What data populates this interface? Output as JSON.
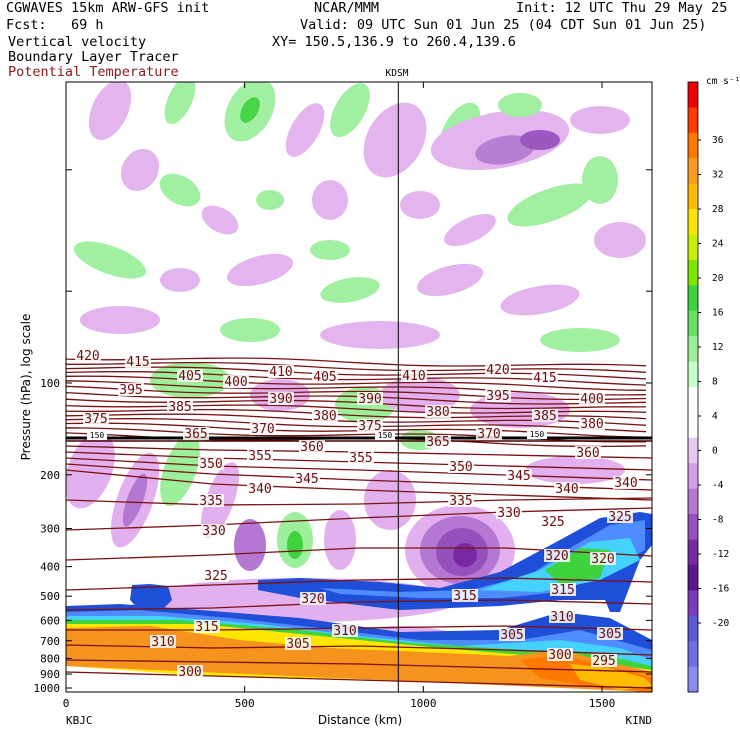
{
  "header": {
    "line1_left": "CGWAVES 15km ARW-GFS init",
    "line1_center": "NCAR/MMM",
    "line1_right": "Init: 12 UTC Thu 29 May 25",
    "fcst": "Fcst:   69 h",
    "valid": "Valid: 09 UTC Sun 01 Jun 25 (04 CDT Sun 01 Jun 25)",
    "field1": "Vertical velocity",
    "field2": "Boundary Layer Tracer",
    "xy": "XY= 150.5,136.9 to 260.4,139.6",
    "field3": "Potential Temperature",
    "station_marker": "KDSM"
  },
  "colors": {
    "theta": "#7a1212",
    "tracer_light": "#6fa8ff",
    "tracer_dark": "#1f4fd8",
    "orange": "#f6921e",
    "green": "#7ef07e",
    "purple": "#b450d6",
    "light_purple": "#e2b0ee"
  },
  "chart_data": {
    "type": "cross-section",
    "xlabel": "Distance (km)",
    "ylabel": "Pressure (hPa), log scale",
    "x_ticks": [
      "0",
      "500",
      "1000",
      "1500"
    ],
    "x_tick_values": [
      0,
      500,
      1000,
      1500
    ],
    "x_range": [
      0,
      1640
    ],
    "y_ticks": [
      "100",
      "200",
      "300",
      "400",
      "500",
      "600",
      "700",
      "800",
      "900",
      "1000"
    ],
    "y_tick_values": [
      100,
      200,
      300,
      400,
      500,
      600,
      700,
      800,
      900,
      1000
    ],
    "left_station": "KBJC",
    "right_station": "KIND",
    "station_marker_x": 930,
    "colorbar": {
      "unit": "cm s⁻¹",
      "labels": [
        "36",
        "32",
        "28",
        "24",
        "20",
        "16",
        "12",
        "8",
        "4",
        "0",
        "-4",
        "-8",
        "-12",
        "-16",
        "-20"
      ],
      "colors": [
        "#f00000",
        "#ff3c00",
        "#ff7800",
        "#ff9c1e",
        "#ffbc00",
        "#ffe600",
        "#c8f000",
        "#7ee600",
        "#3ed23e",
        "#66e066",
        "#9cf09c",
        "#c8ffc8",
        "#ffffff",
        "#ffffff",
        "#e6c8f0",
        "#d2a0e6",
        "#b478d2",
        "#9650be",
        "#7828a0",
        "#5a188c",
        "#7a3cbe",
        "#5a5ad2",
        "#6e6ee6",
        "#8c8cf0"
      ]
    },
    "theta_labels": [
      {
        "v": "420",
        "x": 88,
        "y": 360
      },
      {
        "v": "415",
        "x": 138,
        "y": 366
      },
      {
        "v": "405",
        "x": 190,
        "y": 380
      },
      {
        "v": "400",
        "x": 236,
        "y": 386
      },
      {
        "v": "410",
        "x": 281,
        "y": 376
      },
      {
        "v": "405",
        "x": 325,
        "y": 381
      },
      {
        "v": "410",
        "x": 414,
        "y": 380
      },
      {
        "v": "420",
        "x": 498,
        "y": 374
      },
      {
        "v": "415",
        "x": 545,
        "y": 382
      },
      {
        "v": "395",
        "x": 131,
        "y": 394
      },
      {
        "v": "385",
        "x": 180,
        "y": 411
      },
      {
        "v": "390",
        "x": 281,
        "y": 403
      },
      {
        "v": "390",
        "x": 370,
        "y": 403
      },
      {
        "v": "395",
        "x": 498,
        "y": 400
      },
      {
        "v": "400",
        "x": 592,
        "y": 403
      },
      {
        "v": "375",
        "x": 96,
        "y": 423
      },
      {
        "v": "380",
        "x": 325,
        "y": 420
      },
      {
        "v": "375",
        "x": 370,
        "y": 430
      },
      {
        "v": "380",
        "x": 438,
        "y": 416
      },
      {
        "v": "385",
        "x": 545,
        "y": 420
      },
      {
        "v": "380",
        "x": 592,
        "y": 428
      },
      {
        "v": "365",
        "x": 196,
        "y": 438
      },
      {
        "v": "370",
        "x": 263,
        "y": 433
      },
      {
        "v": "365",
        "x": 438,
        "y": 446
      },
      {
        "v": "370",
        "x": 489,
        "y": 438
      },
      {
        "v": "360",
        "x": 312,
        "y": 451
      },
      {
        "v": "355",
        "x": 260,
        "y": 460
      },
      {
        "v": "355",
        "x": 361,
        "y": 462
      },
      {
        "v": "360",
        "x": 588,
        "y": 457
      },
      {
        "v": "350",
        "x": 211,
        "y": 468
      },
      {
        "v": "350",
        "x": 461,
        "y": 471
      },
      {
        "v": "345",
        "x": 307,
        "y": 483
      },
      {
        "v": "345",
        "x": 519,
        "y": 480
      },
      {
        "v": "340",
        "x": 260,
        "y": 493
      },
      {
        "v": "340",
        "x": 567,
        "y": 493
      },
      {
        "v": "340",
        "x": 626,
        "y": 487
      },
      {
        "v": "335",
        "x": 211,
        "y": 505
      },
      {
        "v": "335",
        "x": 461,
        "y": 505
      },
      {
        "v": "330",
        "x": 509,
        "y": 517
      },
      {
        "v": "330",
        "x": 214,
        "y": 535
      },
      {
        "v": "325",
        "x": 553,
        "y": 526
      },
      {
        "v": "325",
        "x": 620,
        "y": 521
      },
      {
        "v": "320",
        "x": 557,
        "y": 560
      },
      {
        "v": "320",
        "x": 603,
        "y": 563
      },
      {
        "v": "325",
        "x": 216,
        "y": 580
      },
      {
        "v": "320",
        "x": 313,
        "y": 603
      },
      {
        "v": "315",
        "x": 465,
        "y": 600
      },
      {
        "v": "315",
        "x": 563,
        "y": 594
      },
      {
        "v": "315",
        "x": 207,
        "y": 631
      },
      {
        "v": "310",
        "x": 345,
        "y": 635
      },
      {
        "v": "310",
        "x": 562,
        "y": 621
      },
      {
        "v": "305",
        "x": 512,
        "y": 639
      },
      {
        "v": "305",
        "x": 610,
        "y": 638
      },
      {
        "v": "310",
        "x": 163,
        "y": 646
      },
      {
        "v": "305",
        "x": 298,
        "y": 648
      },
      {
        "v": "300",
        "x": 560,
        "y": 659
      },
      {
        "v": "295",
        "x": 604,
        "y": 665
      },
      {
        "v": "300",
        "x": 190,
        "y": 676
      }
    ],
    "tropopause_labels": [
      {
        "v": "150",
        "x": 97,
        "y": 438
      },
      {
        "v": "150",
        "x": 385,
        "y": 438
      },
      {
        "v": "150",
        "x": 537,
        "y": 437
      }
    ]
  }
}
